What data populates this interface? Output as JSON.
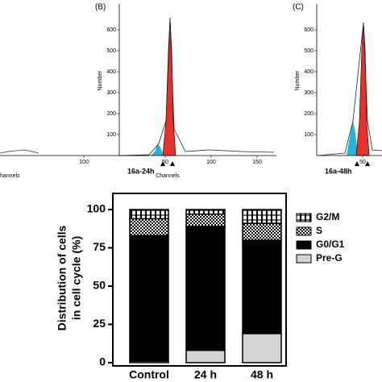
{
  "panels": [
    {
      "xticks": [
        100
      ],
      "xlabel": "hannels"
    },
    {
      "label": "(B)",
      "ylabel": "Number",
      "yticks": [
        100,
        200,
        300,
        400,
        500,
        600
      ],
      "xticks": [
        50,
        100,
        150
      ],
      "xlabel": "Channels",
      "sample": "16a-24h"
    },
    {
      "label": "(C)",
      "ylabel": "Number",
      "yticks": [
        100,
        200,
        300,
        400,
        500,
        600
      ],
      "xticks": [
        50
      ],
      "sample": "16a-48h"
    }
  ],
  "chart_data": {
    "type": "stacked_bar",
    "y_label": [
      "Distribution of cells",
      "in cell cycle (%)"
    ],
    "categories": [
      "Control",
      "24 h",
      "48 h"
    ],
    "series": [
      {
        "name": "Pre-G",
        "color": "#d4d4d4",
        "values": [
          1,
          8,
          19
        ]
      },
      {
        "name": "G0/G1",
        "color": "#000000",
        "values": [
          82,
          81,
          61
        ]
      },
      {
        "name": "S",
        "color": "#000000",
        "pattern": "checker",
        "values": [
          11,
          8,
          11
        ]
      },
      {
        "name": "G2/M",
        "color": "#000000",
        "pattern": "stripes",
        "values": [
          6,
          3,
          9
        ]
      }
    ],
    "ylim": [
      0,
      100
    ],
    "yticks": [
      0,
      25,
      50,
      75,
      100
    ],
    "legend": "right"
  }
}
